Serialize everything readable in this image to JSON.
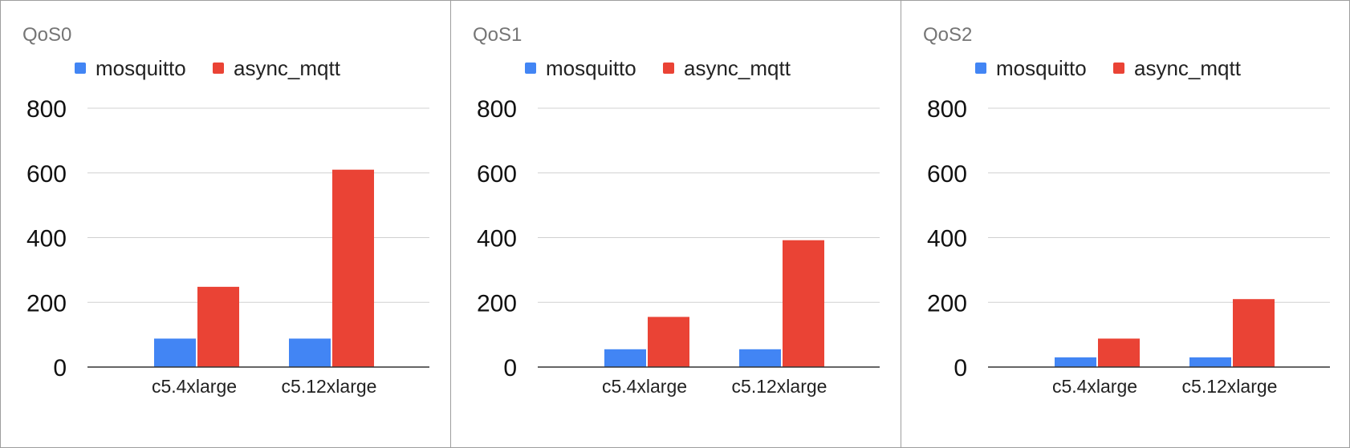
{
  "chart_data": [
    {
      "type": "bar",
      "title": "QoS0",
      "categories": [
        "c5.4xlarge",
        "c5.12xlarge"
      ],
      "series": [
        {
          "name": "mosquitto",
          "values": [
            88,
            88
          ]
        },
        {
          "name": "async_mqtt",
          "values": [
            248,
            610
          ]
        }
      ],
      "ylim": [
        0,
        800
      ],
      "yticks": [
        0,
        200,
        400,
        600,
        800
      ],
      "grid": true,
      "legend": "top-left"
    },
    {
      "type": "bar",
      "title": "QoS1",
      "categories": [
        "c5.4xlarge",
        "c5.12xlarge"
      ],
      "series": [
        {
          "name": "mosquitto",
          "values": [
            55,
            55
          ]
        },
        {
          "name": "async_mqtt",
          "values": [
            155,
            392
          ]
        }
      ],
      "ylim": [
        0,
        800
      ],
      "yticks": [
        0,
        200,
        400,
        600,
        800
      ],
      "grid": true,
      "legend": "top-left"
    },
    {
      "type": "bar",
      "title": "QoS2",
      "categories": [
        "c5.4xlarge",
        "c5.12xlarge"
      ],
      "series": [
        {
          "name": "mosquitto",
          "values": [
            30,
            30
          ]
        },
        {
          "name": "async_mqtt",
          "values": [
            88,
            210
          ]
        }
      ],
      "ylim": [
        0,
        800
      ],
      "yticks": [
        0,
        200,
        400,
        600,
        800
      ],
      "grid": true,
      "legend": "top-left"
    }
  ],
  "colors": {
    "mosquitto": "#4285f4",
    "async_mqtt": "#ea4335",
    "grid": "#d0d0d0",
    "axis": "#333333"
  }
}
